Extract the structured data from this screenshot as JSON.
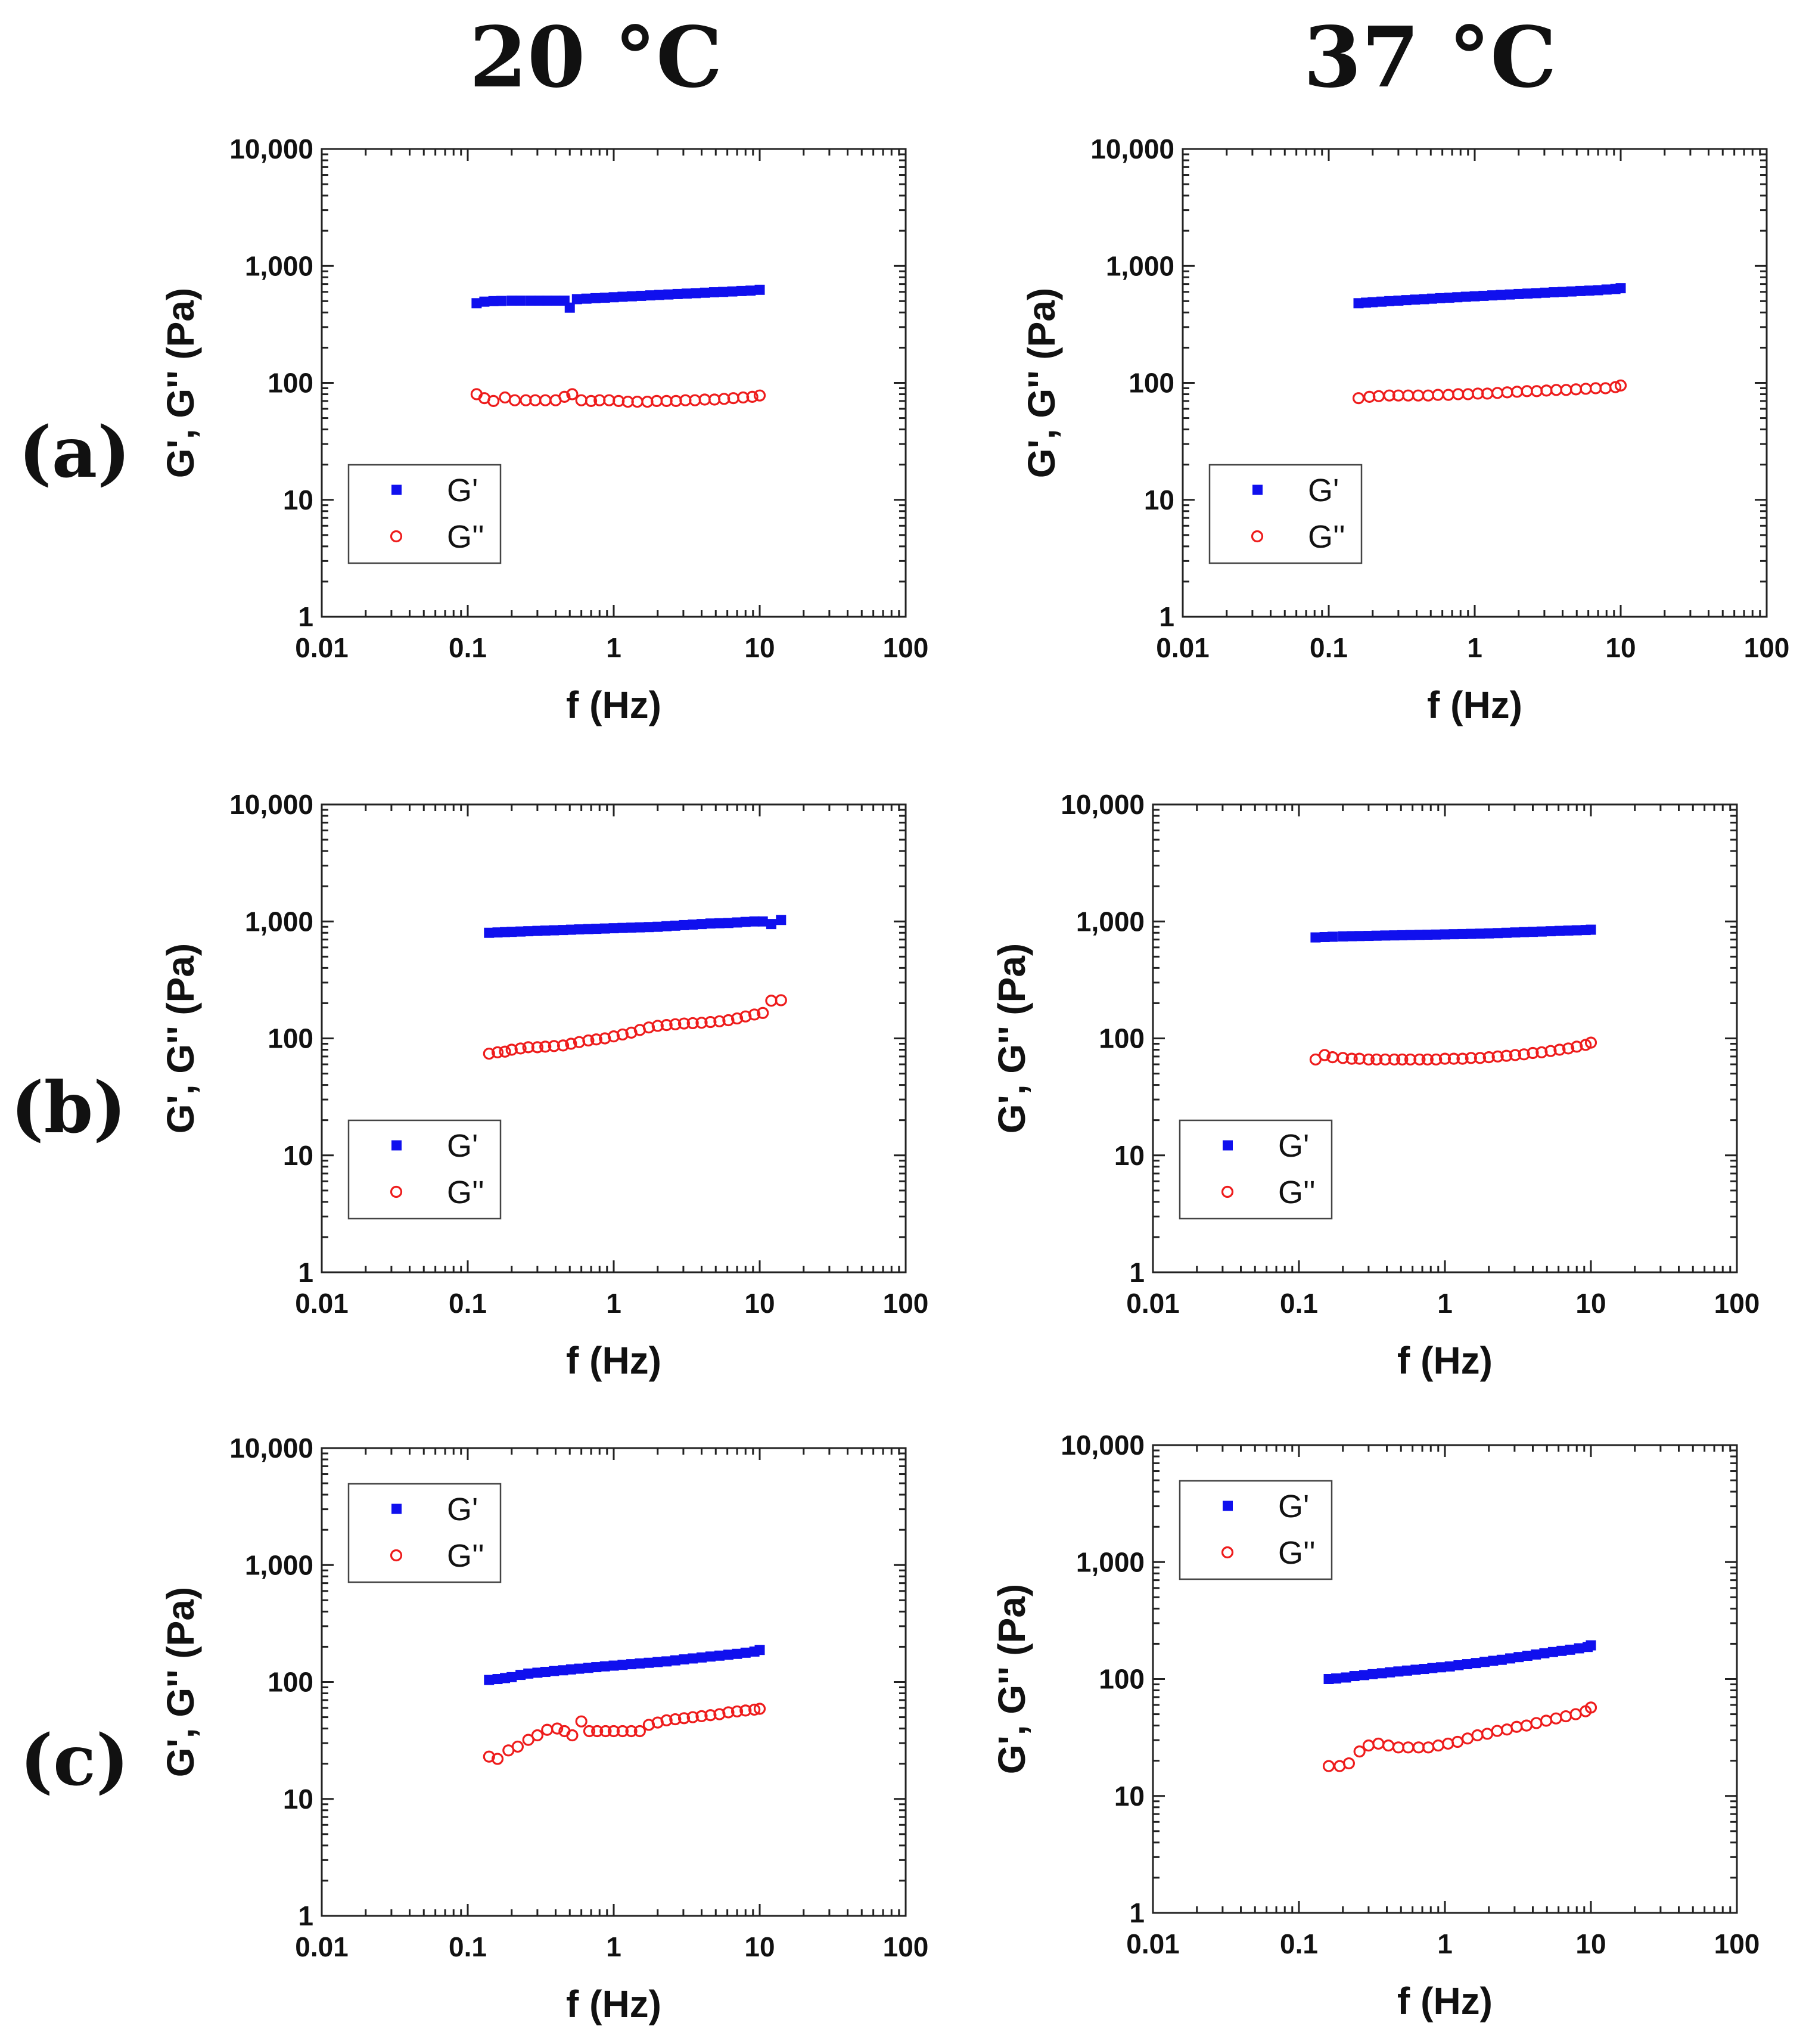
{
  "column_titles": [
    "20 °C",
    "37 °C"
  ],
  "row_labels": [
    "(a)",
    "(b)",
    "(c)"
  ],
  "colors": {
    "G_prime": "#1010ee",
    "G_double_prime": "#ee1c1c"
  },
  "chart_data": [
    {
      "type": "scatter",
      "id": "a-20",
      "row_label": "(a)",
      "column_title": "20 °C",
      "xlabel": "f (Hz)",
      "ylabel": "G', G'' (Pa)",
      "xscale": "log",
      "yscale": "log",
      "xlim": [
        0.01,
        100
      ],
      "ylim": [
        1,
        10000
      ],
      "xticks": [
        "0.01",
        "0.1",
        "1",
        "10",
        "100"
      ],
      "yticks": [
        "1",
        "10",
        "100",
        "1,000",
        "10,000"
      ],
      "legend_position": "lower-left",
      "grid": false,
      "series": [
        {
          "name": "G'",
          "marker": "filled-square",
          "color": "#1010ee",
          "x": [
            0.115,
            0.13,
            0.15,
            0.17,
            0.2,
            0.23,
            0.27,
            0.31,
            0.35,
            0.4,
            0.46,
            0.5,
            0.56,
            0.65,
            0.75,
            0.87,
            1.0,
            1.15,
            1.33,
            1.54,
            1.78,
            2.05,
            2.37,
            2.74,
            3.16,
            3.65,
            4.22,
            4.87,
            5.62,
            6.49,
            7.5,
            8.66,
            10
          ],
          "y": [
            480,
            495,
            500,
            502,
            505,
            505,
            505,
            505,
            505,
            505,
            505,
            440,
            520,
            525,
            530,
            535,
            540,
            545,
            550,
            555,
            560,
            565,
            570,
            575,
            580,
            585,
            590,
            595,
            600,
            605,
            610,
            615,
            625
          ]
        },
        {
          "name": "G''",
          "marker": "open-circle",
          "color": "#ee1c1c",
          "x": [
            0.115,
            0.13,
            0.15,
            0.18,
            0.21,
            0.25,
            0.29,
            0.34,
            0.4,
            0.46,
            0.52,
            0.6,
            0.7,
            0.8,
            0.93,
            1.08,
            1.25,
            1.45,
            1.7,
            1.97,
            2.3,
            2.67,
            3.1,
            3.6,
            4.2,
            4.9,
            5.7,
            6.6,
            7.7,
            8.9,
            10
          ],
          "y": [
            80,
            74,
            70,
            75,
            71,
            71,
            71,
            71,
            71,
            76,
            80,
            71,
            70,
            71,
            71,
            70,
            69,
            69,
            69,
            70,
            70,
            70,
            71,
            71,
            72,
            72,
            73,
            74,
            75,
            76,
            78
          ]
        }
      ]
    },
    {
      "type": "scatter",
      "id": "a-37",
      "row_label": "(a)",
      "column_title": "37 °C",
      "xlabel": "f (Hz)",
      "ylabel": "G', G'' (Pa)",
      "xscale": "log",
      "yscale": "log",
      "xlim": [
        0.01,
        100
      ],
      "ylim": [
        1,
        10000
      ],
      "xticks": [
        "0.01",
        "0.1",
        "1",
        "10",
        "100"
      ],
      "yticks": [
        "1",
        "10",
        "100",
        "1,000",
        "10,000"
      ],
      "legend_position": "lower-left",
      "grid": false,
      "series": [
        {
          "name": "G'",
          "marker": "filled-square",
          "color": "#1010ee",
          "x": [
            0.16,
            0.18,
            0.2,
            0.23,
            0.26,
            0.3,
            0.34,
            0.39,
            0.45,
            0.51,
            0.58,
            0.67,
            0.76,
            0.87,
            1.0,
            1.15,
            1.32,
            1.51,
            1.74,
            2.0,
            2.3,
            2.64,
            3.03,
            3.48,
            4.0,
            4.6,
            5.3,
            6.1,
            7.0,
            8.0,
            9.2,
            10
          ],
          "y": [
            480,
            485,
            490,
            495,
            500,
            505,
            510,
            515,
            520,
            525,
            530,
            535,
            540,
            545,
            550,
            555,
            560,
            565,
            570,
            575,
            580,
            585,
            590,
            595,
            600,
            605,
            610,
            615,
            620,
            628,
            635,
            645
          ]
        },
        {
          "name": "G''",
          "marker": "open-circle",
          "color": "#ee1c1c",
          "x": [
            0.16,
            0.19,
            0.22,
            0.26,
            0.3,
            0.35,
            0.41,
            0.48,
            0.56,
            0.66,
            0.77,
            0.9,
            1.05,
            1.22,
            1.43,
            1.67,
            1.95,
            2.28,
            2.66,
            3.1,
            3.62,
            4.23,
            4.94,
            5.77,
            6.74,
            7.87,
            9.2,
            10
          ],
          "y": [
            74,
            76,
            77,
            78,
            78,
            78,
            78,
            78,
            79,
            79,
            80,
            80,
            81,
            81,
            82,
            83,
            84,
            85,
            85,
            86,
            87,
            87,
            88,
            89,
            90,
            90,
            92,
            95
          ]
        }
      ]
    },
    {
      "type": "scatter",
      "id": "b-20",
      "row_label": "(b)",
      "column_title": "20 °C",
      "xlabel": "f (Hz)",
      "ylabel": "G', G'' (Pa)",
      "xscale": "log",
      "yscale": "log",
      "xlim": [
        0.01,
        100
      ],
      "ylim": [
        1,
        10000
      ],
      "xticks": [
        "0.01",
        "0.1",
        "1",
        "10",
        "100"
      ],
      "yticks": [
        "1",
        "10",
        "100",
        "1,000",
        "10,000"
      ],
      "legend_position": "lower-left",
      "grid": false,
      "series": [
        {
          "name": "G'",
          "marker": "filled-square",
          "color": "#1010ee",
          "x": [
            0.14,
            0.16,
            0.18,
            0.2,
            0.23,
            0.26,
            0.3,
            0.34,
            0.39,
            0.45,
            0.51,
            0.58,
            0.67,
            0.76,
            0.87,
            1.0,
            1.15,
            1.32,
            1.51,
            1.74,
            2.0,
            2.3,
            2.64,
            3.03,
            3.48,
            4.0,
            4.6,
            5.3,
            6.1,
            7.0,
            8.0,
            9.2,
            10.5,
            12,
            14
          ],
          "y": [
            800,
            805,
            810,
            815,
            820,
            825,
            830,
            835,
            840,
            845,
            850,
            855,
            860,
            865,
            870,
            875,
            880,
            885,
            890,
            895,
            900,
            910,
            920,
            930,
            940,
            950,
            960,
            965,
            970,
            980,
            990,
            1000,
            1000,
            950,
            1030
          ]
        },
        {
          "name": "G''",
          "marker": "open-circle",
          "color": "#ee1c1c",
          "x": [
            0.14,
            0.16,
            0.18,
            0.2,
            0.23,
            0.26,
            0.3,
            0.34,
            0.39,
            0.45,
            0.51,
            0.58,
            0.67,
            0.76,
            0.87,
            1.0,
            1.15,
            1.32,
            1.51,
            1.74,
            2.0,
            2.3,
            2.64,
            3.03,
            3.48,
            4.0,
            4.6,
            5.3,
            6.1,
            7.0,
            8.0,
            9.2,
            10.5,
            12,
            14
          ],
          "y": [
            74,
            76,
            77,
            80,
            82,
            84,
            84,
            85,
            86,
            87,
            90,
            93,
            96,
            98,
            100,
            104,
            108,
            112,
            118,
            124,
            128,
            130,
            132,
            134,
            135,
            136,
            138,
            140,
            143,
            148,
            154,
            160,
            165,
            210,
            212
          ]
        }
      ]
    },
    {
      "type": "scatter",
      "id": "b-37",
      "row_label": "(b)",
      "column_title": "37 °C",
      "xlabel": "f (Hz)",
      "ylabel": "G', G'' (Pa)",
      "xscale": "log",
      "yscale": "log",
      "xlim": [
        0.01,
        100
      ],
      "ylim": [
        1,
        10000
      ],
      "xticks": [
        "0.01",
        "0.1",
        "1",
        "10",
        "100"
      ],
      "yticks": [
        "1",
        "10",
        "100",
        "1,000",
        "10,000"
      ],
      "legend_position": "lower-left",
      "grid": false,
      "series": [
        {
          "name": "G'",
          "marker": "filled-square",
          "color": "#1010ee",
          "x": [
            0.13,
            0.15,
            0.17,
            0.2,
            0.23,
            0.26,
            0.3,
            0.34,
            0.39,
            0.45,
            0.51,
            0.58,
            0.67,
            0.76,
            0.87,
            1.0,
            1.15,
            1.32,
            1.51,
            1.74,
            2.0,
            2.3,
            2.64,
            3.03,
            3.48,
            4.0,
            4.6,
            5.3,
            6.1,
            7.0,
            8.0,
            9.2,
            10
          ],
          "y": [
            730,
            735,
            740,
            745,
            748,
            750,
            752,
            755,
            758,
            760,
            762,
            765,
            768,
            770,
            772,
            775,
            778,
            780,
            783,
            786,
            790,
            795,
            800,
            805,
            810,
            815,
            820,
            825,
            830,
            835,
            840,
            845,
            850
          ]
        },
        {
          "name": "G''",
          "marker": "open-circle",
          "color": "#ee1c1c",
          "x": [
            0.13,
            0.15,
            0.17,
            0.2,
            0.23,
            0.26,
            0.3,
            0.34,
            0.39,
            0.45,
            0.51,
            0.58,
            0.67,
            0.76,
            0.87,
            1.0,
            1.15,
            1.32,
            1.51,
            1.74,
            2.0,
            2.3,
            2.64,
            3.03,
            3.48,
            4.0,
            4.6,
            5.3,
            6.1,
            7.0,
            8.0,
            9.2,
            10
          ],
          "y": [
            66,
            72,
            69,
            68,
            67,
            67,
            66,
            66,
            66,
            66,
            66,
            66,
            66,
            66,
            66,
            67,
            67,
            67,
            68,
            68,
            69,
            70,
            71,
            72,
            73,
            75,
            76,
            78,
            80,
            82,
            85,
            88,
            92
          ]
        }
      ]
    },
    {
      "type": "scatter",
      "id": "c-20",
      "row_label": "(c)",
      "column_title": "20 °C",
      "xlabel": "f (Hz)",
      "ylabel": "G', G'' (Pa)",
      "xscale": "log",
      "yscale": "log",
      "xlim": [
        0.01,
        100
      ],
      "ylim": [
        1,
        10000
      ],
      "xticks": [
        "0.01",
        "0.1",
        "1",
        "10",
        "100"
      ],
      "yticks": [
        "1",
        "10",
        "100",
        "1,000",
        "10,000"
      ],
      "legend_position": "upper-left",
      "grid": false,
      "series": [
        {
          "name": "G'",
          "marker": "filled-square",
          "color": "#1010ee",
          "x": [
            0.14,
            0.16,
            0.18,
            0.2,
            0.23,
            0.26,
            0.3,
            0.34,
            0.39,
            0.45,
            0.51,
            0.58,
            0.67,
            0.76,
            0.87,
            1.0,
            1.15,
            1.32,
            1.51,
            1.74,
            2.0,
            2.3,
            2.64,
            3.03,
            3.48,
            4.0,
            4.6,
            5.3,
            6.1,
            7.0,
            8.0,
            9.2,
            10
          ],
          "y": [
            104,
            106,
            108,
            110,
            115,
            118,
            120,
            122,
            124,
            126,
            128,
            130,
            132,
            134,
            136,
            138,
            140,
            142,
            144,
            146,
            148,
            150,
            153,
            156,
            159,
            162,
            165,
            168,
            171,
            174,
            178,
            182,
            188
          ]
        },
        {
          "name": "G''",
          "marker": "open-circle",
          "color": "#ee1c1c",
          "x": [
            0.14,
            0.16,
            0.19,
            0.22,
            0.26,
            0.3,
            0.35,
            0.41,
            0.46,
            0.52,
            0.6,
            0.68,
            0.77,
            0.88,
            1.0,
            1.15,
            1.32,
            1.51,
            1.74,
            2.0,
            2.3,
            2.64,
            3.03,
            3.48,
            4.0,
            4.6,
            5.3,
            6.1,
            7.0,
            8.0,
            9.2,
            10
          ],
          "y": [
            23,
            22,
            26,
            28,
            32,
            35,
            39,
            40,
            38,
            35,
            46,
            38,
            38,
            38,
            38,
            38,
            38,
            38,
            43,
            45,
            47,
            48,
            49,
            50,
            51,
            52,
            53,
            55,
            56,
            57,
            58,
            59
          ]
        }
      ]
    },
    {
      "type": "scatter",
      "id": "c-37",
      "row_label": "(c)",
      "column_title": "37 °C",
      "xlabel": "f (Hz)",
      "ylabel": "G', G'' (Pa)",
      "xscale": "log",
      "yscale": "log",
      "xlim": [
        0.01,
        100
      ],
      "ylim": [
        1,
        10000
      ],
      "xticks": [
        "0.01",
        "0.1",
        "1",
        "10",
        "100"
      ],
      "yticks": [
        "1",
        "10",
        "100",
        "1,000",
        "10,000"
      ],
      "legend_position": "upper-left",
      "grid": false,
      "series": [
        {
          "name": "G'",
          "marker": "filled-square",
          "color": "#1010ee",
          "x": [
            0.16,
            0.18,
            0.21,
            0.24,
            0.28,
            0.32,
            0.37,
            0.42,
            0.48,
            0.55,
            0.63,
            0.72,
            0.82,
            0.94,
            1.08,
            1.24,
            1.42,
            1.63,
            1.87,
            2.14,
            2.45,
            2.8,
            3.2,
            3.67,
            4.2,
            4.8,
            5.5,
            6.3,
            7.2,
            8.3,
            9.5,
            10
          ],
          "y": [
            100,
            101,
            103,
            106,
            108,
            110,
            112,
            114,
            116,
            118,
            120,
            122,
            124,
            126,
            128,
            131,
            134,
            137,
            140,
            143,
            146,
            150,
            154,
            158,
            162,
            166,
            170,
            174,
            178,
            183,
            188,
            194
          ]
        },
        {
          "name": "G''",
          "marker": "open-circle",
          "color": "#ee1c1c",
          "x": [
            0.16,
            0.19,
            0.22,
            0.26,
            0.3,
            0.35,
            0.41,
            0.48,
            0.56,
            0.66,
            0.77,
            0.9,
            1.05,
            1.22,
            1.43,
            1.67,
            1.95,
            2.28,
            2.66,
            3.1,
            3.62,
            4.23,
            4.94,
            5.77,
            6.74,
            7.87,
            9.2,
            10
          ],
          "y": [
            18,
            18,
            19,
            24,
            27,
            28,
            27,
            26,
            26,
            26,
            26,
            27,
            28,
            29,
            31,
            33,
            34,
            36,
            37,
            39,
            40,
            42,
            44,
            46,
            48,
            50,
            53,
            57
          ]
        }
      ]
    }
  ]
}
